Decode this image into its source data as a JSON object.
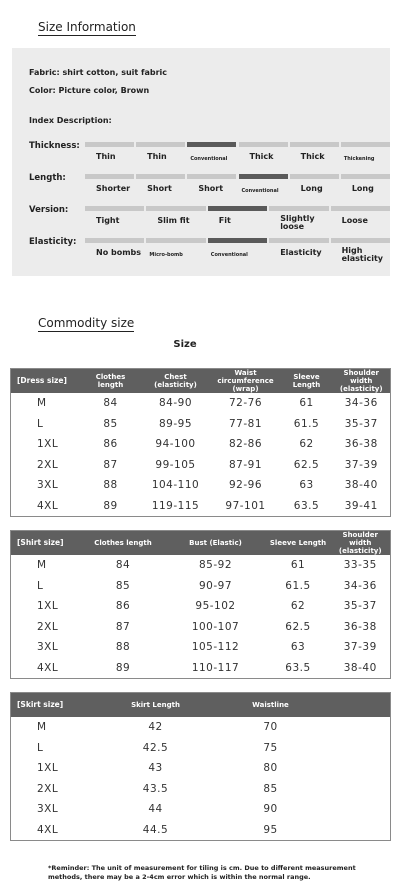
{
  "header": {
    "title": "Size Information"
  },
  "info": {
    "fabric": "Fabric: shirt cotton, suit fabric",
    "color": "Color: Picture color, Brown",
    "index_title": "Index Description:"
  },
  "indices": [
    {
      "label": "Thickness:",
      "options": [
        "Thin",
        "Thin",
        "Conventional",
        "Thick",
        "Thick",
        "Thickening"
      ],
      "selected": 2
    },
    {
      "label": "Length:",
      "options": [
        "Shorter",
        "Short",
        "Short",
        "Conventional",
        "Long",
        "Long"
      ],
      "selected": 3
    },
    {
      "label": "Version:",
      "options": [
        "Tight",
        "Slim fit",
        "Fit",
        "Slightly loose",
        "Loose"
      ],
      "selected": 2
    },
    {
      "label": "Elasticity:",
      "options": [
        "No bombs",
        "Micro-bomb",
        "Conventional",
        "Elasticity",
        "High elasticity"
      ],
      "selected": 2
    }
  ],
  "commodity": {
    "title": "Commodity size",
    "subtitle": "Size"
  },
  "tables": [
    {
      "columns": [
        "[Dress size]",
        "Clothes length",
        "Chest (elasticity)",
        "Waist circumference (wrap)",
        "Sleeve Length",
        "Shoulder width (elasticity)"
      ],
      "rows": [
        [
          "M",
          "84",
          "84-90",
          "72-76",
          "61",
          "34-36"
        ],
        [
          "L",
          "85",
          "89-95",
          "77-81",
          "61.5",
          "35-37"
        ],
        [
          "1XL",
          "86",
          "94-100",
          "82-86",
          "62",
          "36-38"
        ],
        [
          "2XL",
          "87",
          "99-105",
          "87-91",
          "62.5",
          "37-39"
        ],
        [
          "3XL",
          "88",
          "104-110",
          "92-96",
          "63",
          "38-40"
        ],
        [
          "4XL",
          "89",
          "119-115",
          "97-101",
          "63.5",
          "39-41"
        ]
      ]
    },
    {
      "columns": [
        "[Shirt size]",
        "Clothes length",
        "Bust (Elastic)",
        "Sleeve Length",
        "Shoulder width (elasticity)"
      ],
      "rows": [
        [
          "M",
          "84",
          "85-92",
          "61",
          "33-35"
        ],
        [
          "L",
          "85",
          "90-97",
          "61.5",
          "34-36"
        ],
        [
          "1XL",
          "86",
          "95-102",
          "62",
          "35-37"
        ],
        [
          "2XL",
          "87",
          "100-107",
          "62.5",
          "36-38"
        ],
        [
          "3XL",
          "88",
          "105-112",
          "63",
          "37-39"
        ],
        [
          "4XL",
          "89",
          "110-117",
          "63.5",
          "38-40"
        ]
      ]
    },
    {
      "columns": [
        "[Skirt size]",
        "Skirt Length",
        "Waistline"
      ],
      "rows": [
        [
          "M",
          "42",
          "70"
        ],
        [
          "L",
          "42.5",
          "75"
        ],
        [
          "1XL",
          "43",
          "80"
        ],
        [
          "2XL",
          "43.5",
          "85"
        ],
        [
          "3XL",
          "44",
          "90"
        ],
        [
          "4XL",
          "44.5",
          "95"
        ]
      ]
    }
  ],
  "footnote": [
    "*Reminder: The unit of measurement for tiling is cm. Due to different measurement",
    "methods, there may be a 2-4cm error which is within the normal range."
  ]
}
